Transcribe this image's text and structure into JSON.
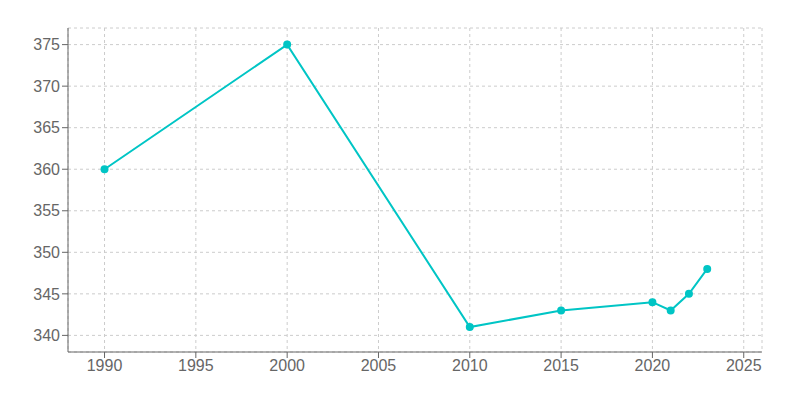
{
  "chart_data": {
    "type": "line",
    "x": [
      1990,
      2000,
      2010,
      2015,
      2020,
      2021,
      2022,
      2023
    ],
    "values": [
      360,
      375,
      341,
      343,
      344,
      343,
      345,
      348
    ],
    "color": "#00C5C5",
    "marker": "circle",
    "xlim": [
      1988,
      2026
    ],
    "ylim": [
      338,
      377
    ],
    "xticks": [
      1990,
      1995,
      2000,
      2005,
      2010,
      2015,
      2020,
      2025
    ],
    "yticks": [
      340,
      345,
      350,
      355,
      360,
      365,
      370,
      375
    ],
    "grid": true
  }
}
